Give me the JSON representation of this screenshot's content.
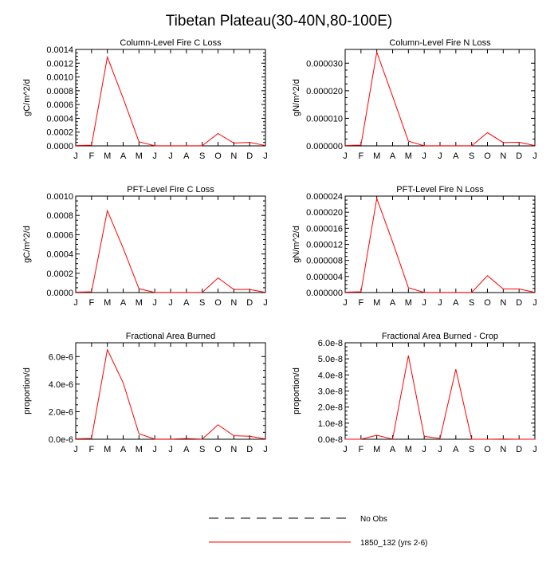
{
  "page_title": "Tibetan Plateau(30-40N,80-100E)",
  "months": [
    "J",
    "F",
    "M",
    "A",
    "M",
    "J",
    "J",
    "A",
    "S",
    "O",
    "N",
    "D",
    "J"
  ],
  "legend": {
    "entries": [
      {
        "label": "No Obs",
        "style": "dashed",
        "color": "#000000"
      },
      {
        "label": "1850_132 (yrs 2-6)",
        "style": "solid",
        "color": "#ff0000"
      }
    ]
  },
  "chart_data": [
    {
      "type": "line",
      "title": "Column-Level Fire C Loss",
      "ylabel": "gC/m^2/d",
      "ylim": [
        0,
        0.0014
      ],
      "yticks": [
        0,
        0.0002,
        0.0004,
        0.0006,
        0.0008,
        0.001,
        0.0012,
        0.0014
      ],
      "ytick_labels": [
        "0.0000",
        "0.0002",
        "0.0004",
        "0.0006",
        "0.0008",
        "0.0010",
        "0.0012",
        "0.0014"
      ],
      "series": [
        {
          "name": "1850_132 (yrs 2-6)",
          "color": "#ff0000",
          "values": [
            5e-06,
            1e-05,
            0.00129,
            0.00069,
            6e-05,
            2e-06,
            2e-06,
            2e-06,
            2e-06,
            0.00018,
            4e-05,
            5e-05,
            5e-06
          ]
        }
      ]
    },
    {
      "type": "line",
      "title": "Column-Level Fire N Loss",
      "ylabel": "gN/m^2/d",
      "ylim": [
        0,
        3.5e-05
      ],
      "yticks": [
        0,
        1e-05,
        2e-05,
        3e-05
      ],
      "ytick_labels": [
        "0.000000",
        "0.000010",
        "0.000020",
        "0.000030"
      ],
      "series": [
        {
          "name": "1850_132 (yrs 2-6)",
          "color": "#ff0000",
          "values": [
            1e-07,
            3e-07,
            3.4e-05,
            1.8e-05,
            1.7e-06,
            5e-08,
            5e-08,
            5e-08,
            5e-08,
            4.8e-06,
            1.2e-06,
            1.3e-06,
            1e-07
          ]
        }
      ]
    },
    {
      "type": "line",
      "title": "PFT-Level Fire C Loss",
      "ylabel": "gC/m^2/d",
      "ylim": [
        0,
        0.001
      ],
      "yticks": [
        0,
        0.0002,
        0.0004,
        0.0006,
        0.0008,
        0.001
      ],
      "ytick_labels": [
        "0.0000",
        "0.0002",
        "0.0004",
        "0.0006",
        "0.0008",
        "0.0010"
      ],
      "series": [
        {
          "name": "1850_132 (yrs 2-6)",
          "color": "#ff0000",
          "values": [
            4e-06,
            8e-06,
            0.00085,
            0.00046,
            4e-05,
            1e-06,
            1e-06,
            1e-06,
            1e-06,
            0.000152,
            3.2e-05,
            3.2e-05,
            2e-06
          ]
        }
      ]
    },
    {
      "type": "line",
      "title": "PFT-Level Fire N Loss",
      "ylabel": "gN/m^2/d",
      "ylim": [
        0,
        2.4e-05
      ],
      "yticks": [
        0,
        4e-06,
        8e-06,
        1.2e-05,
        1.6e-05,
        2e-05,
        2.4e-05
      ],
      "ytick_labels": [
        "0.000000",
        "0.000004",
        "0.000008",
        "0.000012",
        "0.000016",
        "0.000020",
        "0.000024"
      ],
      "series": [
        {
          "name": "1850_132 (yrs 2-6)",
          "color": "#ff0000",
          "values": [
            1e-07,
            2e-07,
            2.34e-05,
            1.26e-05,
            1.2e-06,
            3e-08,
            3e-08,
            3e-08,
            3e-08,
            4.2e-06,
            9e-07,
            9e-07,
            5e-08
          ]
        }
      ]
    },
    {
      "type": "line",
      "title": "Fractional Area Burned",
      "ylabel": "proportion/d",
      "ylim": [
        0,
        7e-06
      ],
      "yticks": [
        0,
        2e-06,
        4e-06,
        6e-06
      ],
      "ytick_labels": [
        "0.0e-6",
        "2.0e-6",
        "4.0e-6",
        "6.0e-6"
      ],
      "series": [
        {
          "name": "1850_132 (yrs 2-6)",
          "color": "#ff0000",
          "values": [
            3e-08,
            6e-08,
            6.5e-06,
            4.1e-06,
            4e-07,
            1e-08,
            1e-08,
            5e-08,
            1e-08,
            1.05e-06,
            2.5e-07,
            2.2e-07,
            2e-08
          ]
        }
      ]
    },
    {
      "type": "line",
      "title": "Fractional Area Burned - Crop",
      "ylabel": "proportion/d",
      "ylim": [
        0,
        6e-08
      ],
      "yticks": [
        0,
        1e-08,
        2e-08,
        3e-08,
        4e-08,
        5e-08,
        6e-08
      ],
      "ytick_labels": [
        "0.0e-8",
        "1.0e-8",
        "2.0e-8",
        "3.0e-8",
        "4.0e-8",
        "5.0e-8",
        "6.0e-8"
      ],
      "series": [
        {
          "name": "1850_132 (yrs 2-6)",
          "color": "#ff0000",
          "values": [
            0,
            0,
            2.5e-09,
            1e-10,
            5.2e-08,
            1.8e-09,
            5e-10,
            4.35e-08,
            0,
            0,
            1.5e-10,
            0,
            0
          ]
        }
      ]
    }
  ]
}
